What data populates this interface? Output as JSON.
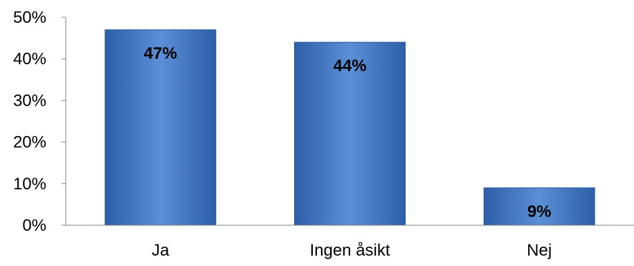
{
  "chart_data": {
    "type": "bar",
    "categories": [
      "Ja",
      "Ingen åsikt",
      "Nej"
    ],
    "values": [
      47,
      44,
      9
    ],
    "data_labels": [
      "47%",
      "44%",
      "9%"
    ],
    "title": "",
    "xlabel": "",
    "ylabel": "",
    "ylim": [
      0,
      50
    ],
    "yticks": [
      0,
      10,
      20,
      30,
      40,
      50
    ],
    "ytick_labels": [
      "0%",
      "10%",
      "20%",
      "30%",
      "40%",
      "50%"
    ],
    "grid": false,
    "legend": "none",
    "colors": {
      "bar_top": "#5b8fd6",
      "bar_mid": "#3d74c5",
      "bar_bottom": "#2e5fa8",
      "bar_edge": "#2a5599",
      "axis": "#808080"
    }
  }
}
